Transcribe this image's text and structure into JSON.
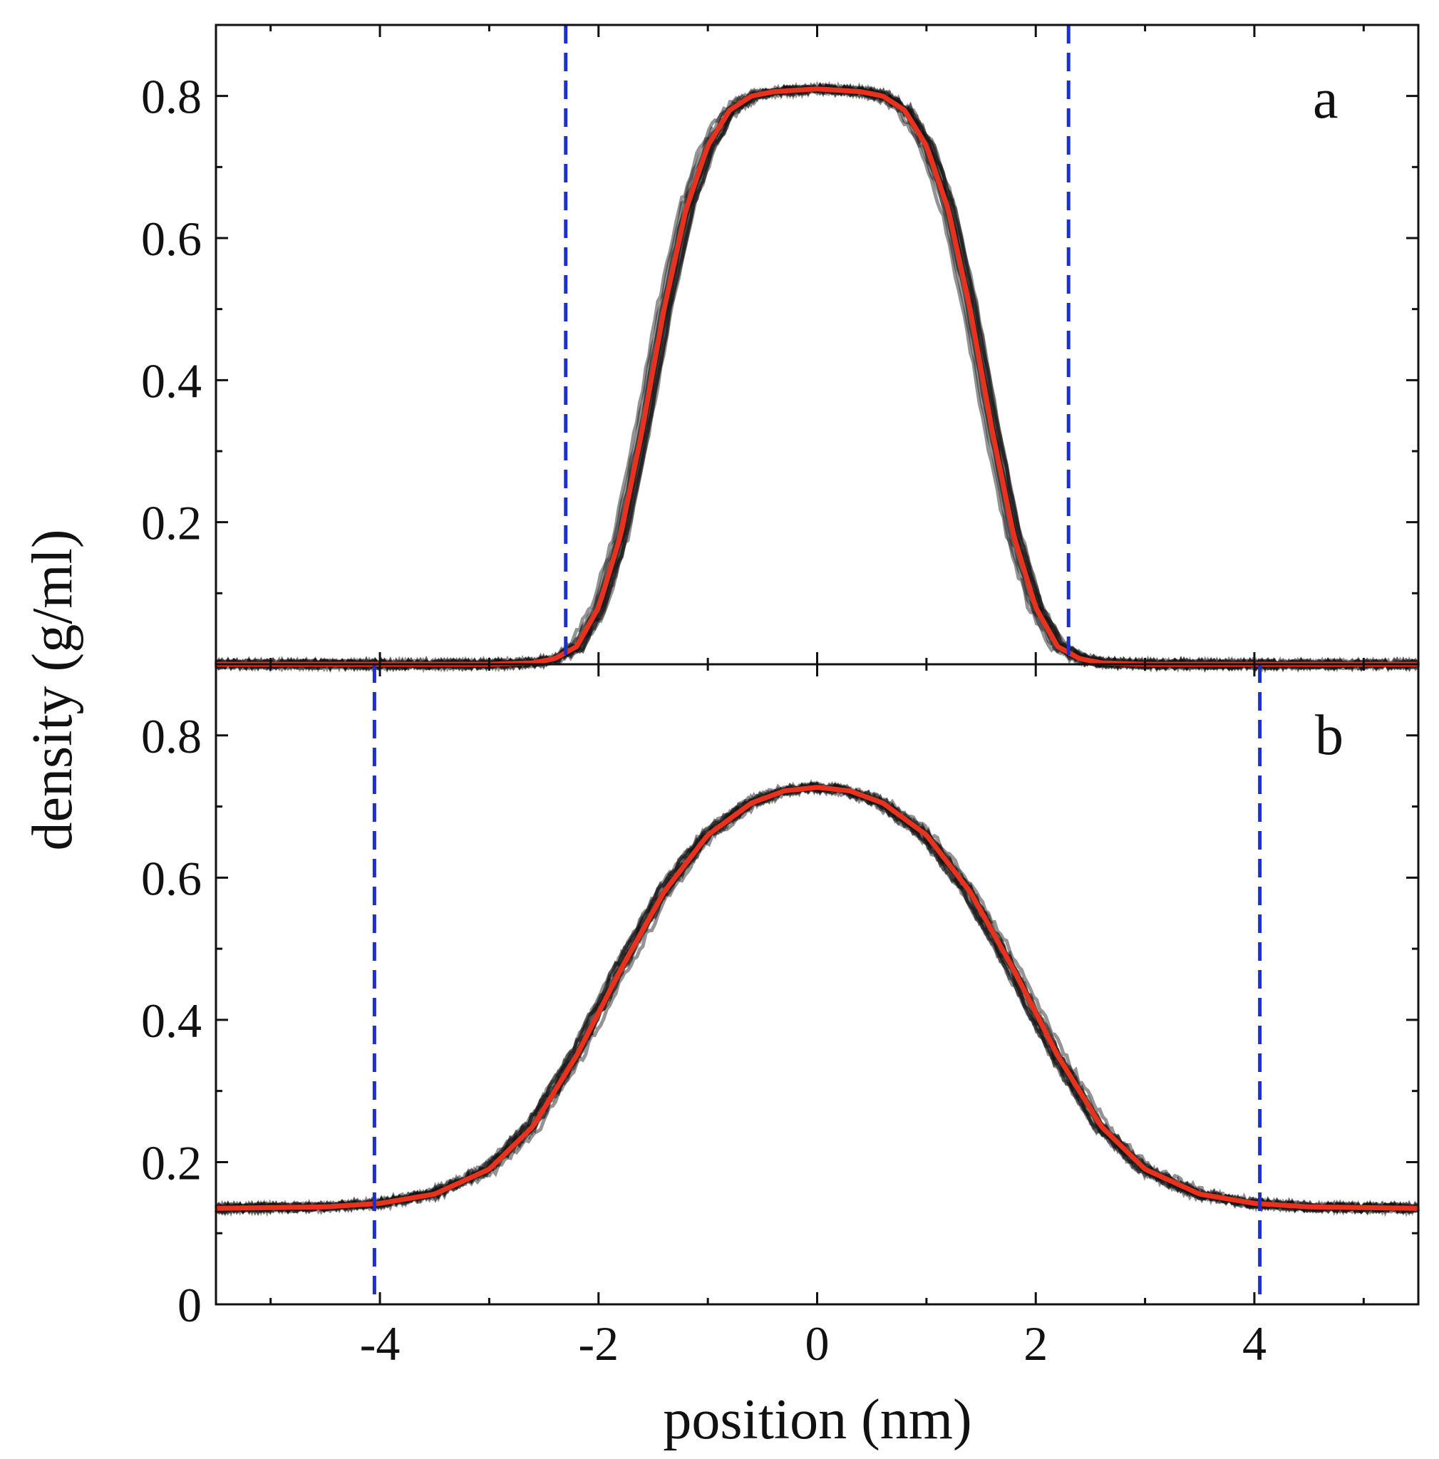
{
  "chart_data": [
    {
      "panel": "a",
      "type": "line",
      "panel_label": "a",
      "xlim": [
        -5.5,
        5.5
      ],
      "ylim": [
        0,
        0.9
      ],
      "yticks": [
        {
          "value": 0.2,
          "label": "0.2"
        },
        {
          "value": 0.4,
          "label": "0.4"
        },
        {
          "value": 0.6,
          "label": "0.6"
        },
        {
          "value": 0.8,
          "label": "0.8"
        }
      ],
      "vlines": [
        -2.3,
        2.3
      ],
      "series": [
        {
          "x": [
            -5.5,
            -3.0,
            -2.6,
            -2.4,
            -2.2,
            -2.0,
            -1.8,
            -1.6,
            -1.4,
            -1.2,
            -1.0,
            -0.8,
            -0.6,
            -0.4,
            0.0,
            0.4,
            0.6,
            0.8,
            1.0,
            1.2,
            1.4,
            1.6,
            1.8,
            2.0,
            2.2,
            2.4,
            2.6,
            3.0,
            5.5
          ],
          "y": [
            0.0,
            0.0,
            0.002,
            0.008,
            0.025,
            0.08,
            0.18,
            0.33,
            0.5,
            0.64,
            0.73,
            0.78,
            0.8,
            0.806,
            0.81,
            0.806,
            0.8,
            0.78,
            0.73,
            0.64,
            0.5,
            0.33,
            0.18,
            0.08,
            0.025,
            0.008,
            0.002,
            0.0,
            0.0
          ]
        }
      ]
    },
    {
      "panel": "b",
      "type": "line",
      "panel_label": "b",
      "xlim": [
        -5.5,
        5.5
      ],
      "ylim": [
        0,
        0.9
      ],
      "xticks": [
        {
          "value": -4,
          "label": "-4"
        },
        {
          "value": -2,
          "label": "-2"
        },
        {
          "value": 0,
          "label": "0"
        },
        {
          "value": 2,
          "label": "2"
        },
        {
          "value": 4,
          "label": "4"
        }
      ],
      "yticks": [
        {
          "value": 0,
          "label": "0"
        },
        {
          "value": 0.2,
          "label": "0.2"
        },
        {
          "value": 0.4,
          "label": "0.4"
        },
        {
          "value": 0.6,
          "label": "0.6"
        },
        {
          "value": 0.8,
          "label": "0.8"
        }
      ],
      "vlines": [
        -4.05,
        4.05
      ],
      "series": [
        {
          "x": [
            -5.5,
            -4.5,
            -4.0,
            -3.5,
            -3.0,
            -2.6,
            -2.2,
            -1.8,
            -1.4,
            -1.0,
            -0.6,
            -0.3,
            0.0,
            0.3,
            0.6,
            1.0,
            1.4,
            1.8,
            2.2,
            2.6,
            3.0,
            3.5,
            4.0,
            4.5,
            5.5
          ],
          "y": [
            0.135,
            0.137,
            0.142,
            0.155,
            0.19,
            0.25,
            0.35,
            0.47,
            0.58,
            0.66,
            0.705,
            0.722,
            0.727,
            0.722,
            0.705,
            0.66,
            0.58,
            0.47,
            0.35,
            0.25,
            0.19,
            0.155,
            0.142,
            0.137,
            0.135
          ]
        }
      ]
    }
  ],
  "labels": {
    "xlabel": "position (nm)",
    "ylabel": "density (g/ml)"
  },
  "colors": {
    "fit_line": "#e8321e",
    "data_cloud": "#111111",
    "vline": "#1c2fd4",
    "axis": "#111111"
  }
}
